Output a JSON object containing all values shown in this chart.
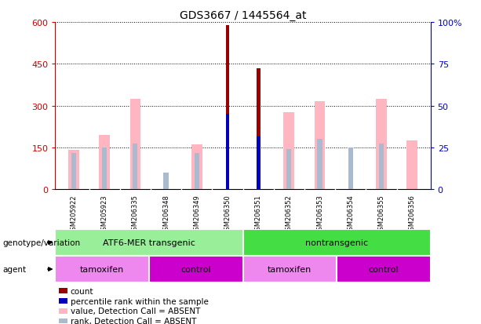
{
  "title": "GDS3667 / 1445564_at",
  "samples": [
    "GSM205922",
    "GSM205923",
    "GSM206335",
    "GSM206348",
    "GSM206349",
    "GSM206350",
    "GSM206351",
    "GSM206352",
    "GSM206353",
    "GSM206354",
    "GSM206355",
    "GSM206356"
  ],
  "count_values": [
    0,
    0,
    0,
    0,
    0,
    590,
    435,
    0,
    0,
    0,
    0,
    0
  ],
  "percentile_rank": [
    0,
    0,
    0,
    0,
    0,
    270,
    190,
    0,
    0,
    0,
    0,
    0
  ],
  "value_absent": [
    140,
    195,
    325,
    0,
    160,
    0,
    0,
    275,
    315,
    0,
    325,
    175
  ],
  "rank_absent": [
    130,
    150,
    165,
    60,
    130,
    0,
    0,
    145,
    180,
    150,
    165,
    0
  ],
  "ylim_left": [
    0,
    600
  ],
  "ylim_right": [
    0,
    100
  ],
  "yticks_left": [
    0,
    150,
    300,
    450,
    600
  ],
  "yticks_right": [
    0,
    25,
    50,
    75,
    100
  ],
  "ytick_labels_left": [
    "0",
    "150",
    "300",
    "450",
    "600"
  ],
  "ytick_labels_right": [
    "0",
    "25",
    "50",
    "75",
    "100%"
  ],
  "color_count": "#990000",
  "color_percentile": "#0000BB",
  "color_value_absent": "#FFB6C1",
  "color_rank_absent": "#AABBD0",
  "left_tick_color": "#CC0000",
  "right_tick_color": "#0000CC",
  "grid_color": "#000000",
  "bg_samples": "#C8C8C8",
  "group1_label": "ATF6-MER transgenic",
  "group2_label": "nontransgenic",
  "group1_color": "#99EE99",
  "group2_color": "#44DD44",
  "agent_tamoxifen_color": "#EE88EE",
  "agent_control_color": "#CC00CC",
  "agent_labels": [
    "tamoxifen",
    "control",
    "tamoxifen",
    "control"
  ],
  "agent_colors": [
    "#EE88EE",
    "#CC00CC",
    "#EE88EE",
    "#CC00CC"
  ],
  "genotype_label": "genotype/variation",
  "agent_label": "agent",
  "legend_items": [
    {
      "label": "count",
      "color": "#990000"
    },
    {
      "label": "percentile rank within the sample",
      "color": "#0000BB"
    },
    {
      "label": "value, Detection Call = ABSENT",
      "color": "#FFB6C1"
    },
    {
      "label": "rank, Detection Call = ABSENT",
      "color": "#AABBD0"
    }
  ]
}
